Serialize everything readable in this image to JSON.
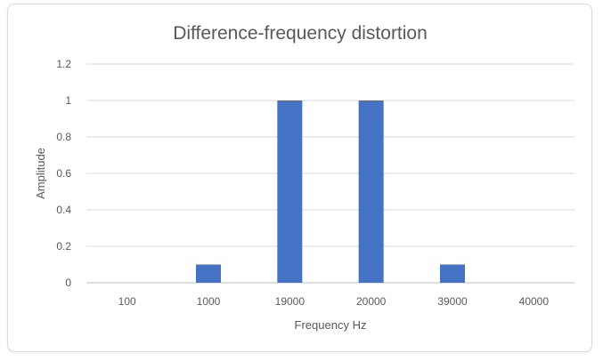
{
  "chart_data": {
    "type": "bar",
    "title": "Difference-frequency distortion",
    "xlabel": "Frequency Hz",
    "ylabel": "Amplitude",
    "categories": [
      "100",
      "1000",
      "19000",
      "20000",
      "39000",
      "40000"
    ],
    "values": [
      0,
      0.1,
      1,
      1,
      0.1,
      0
    ],
    "ylim": [
      0,
      1.2
    ],
    "yticks": [
      "0",
      "0.2",
      "0.4",
      "0.6",
      "0.8",
      "1",
      "1.2"
    ],
    "grid": true,
    "legend": "none",
    "bar_color": "#4472C4"
  }
}
